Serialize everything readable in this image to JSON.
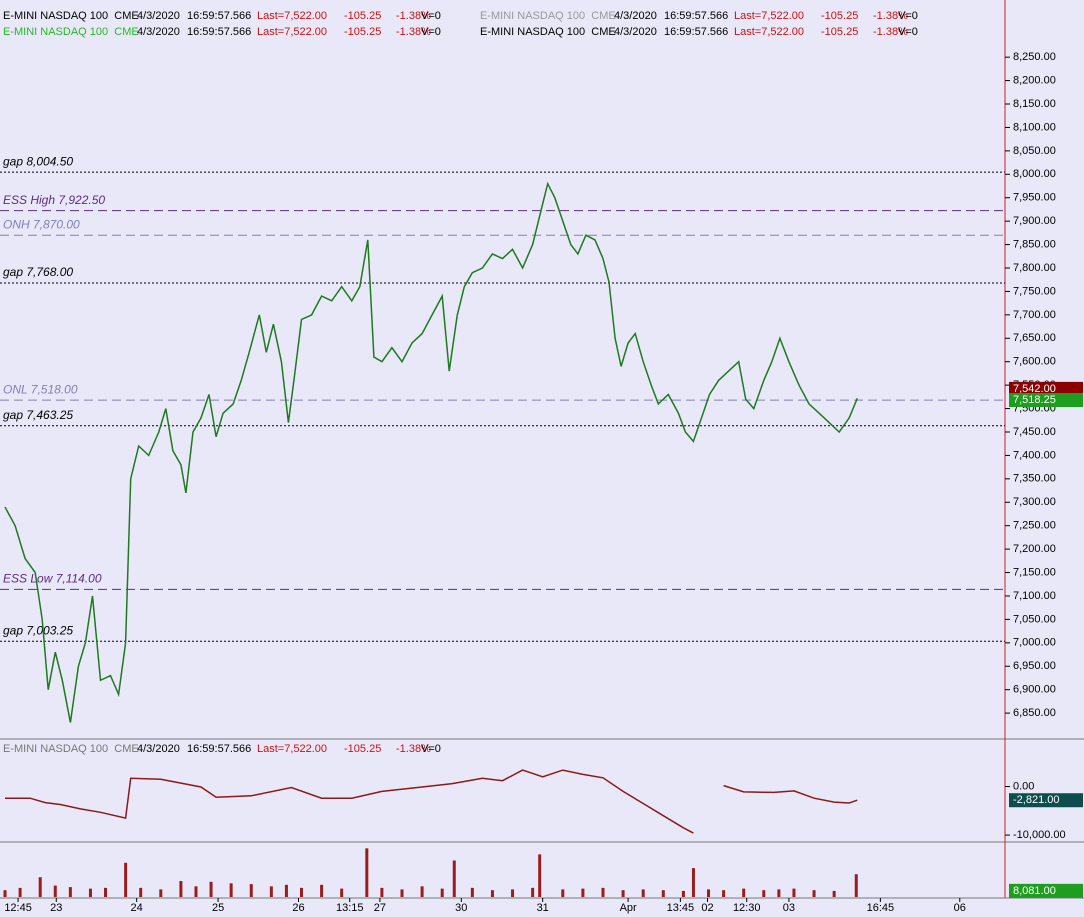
{
  "chart_data": [
    {
      "type": "line",
      "panel": "price",
      "color": "#1f7a1f",
      "headers": [
        {
          "name": "E-MINI NASDAQ 100  CME",
          "date": "4/3/2020",
          "time": "16:59:57.566",
          "last": "Last=7,522.00",
          "change": "-105.25",
          "pct": "-1.38%",
          "vol": "V=0",
          "color": "#000000"
        },
        {
          "name": "E-MINI NASDAQ 100  CME",
          "date": "4/3/2020",
          "time": "16:59:57.566",
          "last": "Last=7,522.00",
          "change": "-105.25",
          "pct": "-1.38%",
          "vol": "V=0",
          "color": "#22bb22"
        },
        {
          "name": "E-MINI NASDAQ 100  CME",
          "date": "4/3/2020",
          "time": "16:59:57.566",
          "last": "Last=7,522.00",
          "change": "-105.25",
          "pct": "-1.38%",
          "vol": "V=0",
          "color": "#999999"
        },
        {
          "name": "E-MINI NASDAQ 100  CME",
          "date": "4/3/2020",
          "time": "16:59:57.566",
          "last": "Last=7,522.00",
          "change": "-105.25",
          "pct": "-1.38%",
          "vol": "V=0",
          "color": "#000000"
        }
      ],
      "x": [
        0.5,
        1.5,
        2.5,
        3.5,
        4.2,
        4.8,
        5.5,
        6.2,
        7,
        7.8,
        8.5,
        9.2,
        10,
        11,
        11.8,
        12.5,
        13,
        13.8,
        14.8,
        15.8,
        16.5,
        17.2,
        18,
        18.5,
        19.2,
        20,
        20.8,
        21.5,
        22.2,
        23.2,
        24,
        24.8,
        25.8,
        26.5,
        27.2,
        28,
        28.7,
        29.3,
        30,
        31,
        32,
        33,
        34,
        35,
        35.8,
        36.6,
        37.2,
        38,
        39,
        40,
        41,
        42,
        43,
        44,
        44.7,
        45.5,
        46.2,
        47,
        48,
        49,
        50,
        51,
        52,
        53,
        53.8,
        54.5,
        55.2,
        56,
        56.8,
        57.5,
        58.3,
        59.2,
        60,
        60.6,
        61.2,
        61.8,
        62.5,
        63.2,
        64,
        64.8,
        65.5,
        66.5,
        67.5,
        68.2,
        69,
        69.8,
        70.6,
        71.5,
        72.5,
        73.5,
        74.2,
        75,
        76,
        76.8,
        77.6,
        78.5,
        79.5,
        80.5,
        81.5,
        82.5,
        83.5,
        84.5,
        85.3
      ],
      "values": [
        7290,
        7250,
        7180,
        7150,
        7050,
        6900,
        6980,
        6920,
        6830,
        6950,
        7000,
        7100,
        6920,
        6930,
        6890,
        7000,
        7350,
        7420,
        7400,
        7450,
        7500,
        7410,
        7380,
        7320,
        7450,
        7480,
        7530,
        7440,
        7490,
        7510,
        7560,
        7620,
        7700,
        7620,
        7680,
        7600,
        7470,
        7570,
        7690,
        7700,
        7740,
        7730,
        7760,
        7730,
        7760,
        7860,
        7610,
        7600,
        7630,
        7600,
        7640,
        7660,
        7700,
        7740,
        7580,
        7700,
        7760,
        7790,
        7800,
        7830,
        7820,
        7840,
        7800,
        7850,
        7920,
        7980,
        7950,
        7900,
        7850,
        7830,
        7870,
        7860,
        7820,
        7770,
        7650,
        7590,
        7640,
        7660,
        7600,
        7550,
        7510,
        7530,
        7490,
        7450,
        7430,
        7480,
        7530,
        7560,
        7580,
        7600,
        7520,
        7500,
        7560,
        7600,
        7650,
        7600,
        7550,
        7510,
        7490,
        7470,
        7450,
        7480,
        7522
      ],
      "xlim": [
        0,
        100
      ],
      "ylim": [
        6799,
        8372
      ],
      "yticks": [
        {
          "value": 6850,
          "label": "6,850.00"
        },
        {
          "value": 6900,
          "label": "6,900.00"
        },
        {
          "value": 6950,
          "label": "6,950.00"
        },
        {
          "value": 7000,
          "label": "7,000.00"
        },
        {
          "value": 7050,
          "label": "7,050.00"
        },
        {
          "value": 7100,
          "label": "7,100.00"
        },
        {
          "value": 7150,
          "label": "7,150.00"
        },
        {
          "value": 7200,
          "label": "7,200.00"
        },
        {
          "value": 7250,
          "label": "7,250.00"
        },
        {
          "value": 7300,
          "label": "7,300.00"
        },
        {
          "value": 7350,
          "label": "7,350.00"
        },
        {
          "value": 7400,
          "label": "7,400.00"
        },
        {
          "value": 7450,
          "label": "7,450.00"
        },
        {
          "value": 7500,
          "label": "7,500.00"
        },
        {
          "value": 7550,
          "label": "7,550.00"
        },
        {
          "value": 7600,
          "label": "7,600.00"
        },
        {
          "value": 7650,
          "label": "7,650.00"
        },
        {
          "value": 7700,
          "label": "7,700.00"
        },
        {
          "value": 7750,
          "label": "7,750.00"
        },
        {
          "value": 7800,
          "label": "7,800.00"
        },
        {
          "value": 7850,
          "label": "7,850.00"
        },
        {
          "value": 7900,
          "label": "7,900.00"
        },
        {
          "value": 7950,
          "label": "7,950.00"
        },
        {
          "value": 8000,
          "label": "8,000.00"
        },
        {
          "value": 8050,
          "label": "8,050.00"
        },
        {
          "value": 8100,
          "label": "8,100.00"
        },
        {
          "value": 8150,
          "label": "8,150.00"
        },
        {
          "value": 8200,
          "label": "8,200.00"
        },
        {
          "value": 8250,
          "label": "8,250.00"
        }
      ],
      "levels": [
        {
          "label": "gap 8,004.50",
          "value": 8004.5,
          "style": "dotted",
          "color": "#000000"
        },
        {
          "label": "ESS High 7,922.50",
          "value": 7922.5,
          "style": "dashed",
          "color": "#5b2c83"
        },
        {
          "label": "ONH 7,870.00",
          "value": 7870,
          "style": "dashed",
          "color": "#8080b8"
        },
        {
          "label": "gap 7,768.00",
          "value": 7768,
          "style": "dotted",
          "color": "#000000"
        },
        {
          "label": "ONL 7,518.00",
          "value": 7518,
          "style": "dashed",
          "color": "#8080b8"
        },
        {
          "label": "gap 7,463.25",
          "value": 7463.25,
          "style": "dotted",
          "color": "#000000"
        },
        {
          "label": "ESS Low 7,114.00",
          "value": 7114,
          "style": "dashed",
          "color": "#5b2c83"
        },
        {
          "label": "gap 7,003.25",
          "value": 7003.25,
          "style": "dotted",
          "color": "#000000"
        }
      ],
      "markers": [
        {
          "label": "7,542.00",
          "value": 7542,
          "color": "#8b0000"
        },
        {
          "label": "7,518.25",
          "value": 7518.25,
          "color": "#1e9e1e"
        }
      ]
    },
    {
      "type": "line",
      "panel": "indicator",
      "color": "#8b1a1a",
      "headers": [
        {
          "name": "E-MINI NASDAQ 100  CME",
          "date": "4/3/2020",
          "time": "16:59:57.566",
          "last": "Last=7,522.00",
          "change": "-105.25",
          "pct": "-1.38%",
          "vol": "V=0",
          "color": "#777777"
        }
      ],
      "x": [
        0.5,
        3,
        4.5,
        6,
        8,
        10,
        12.5,
        13,
        16,
        20,
        21.5,
        25,
        29,
        32,
        35,
        38,
        42,
        45,
        48,
        50,
        52,
        54,
        56,
        58,
        60,
        62,
        64,
        66,
        68,
        69,
        69.5,
        72,
        74,
        77,
        79,
        81,
        83,
        84.5,
        85.3
      ],
      "values": [
        -2400,
        -2400,
        -3300,
        -3700,
        -4600,
        -5300,
        -6500,
        1700,
        1500,
        -100,
        -2200,
        -1900,
        -200,
        -2400,
        -2400,
        -1000,
        -100,
        600,
        1700,
        1200,
        3400,
        2000,
        3400,
        2500,
        1800,
        -1000,
        -3500,
        -6000,
        -8500,
        -9600,
        null,
        200,
        -1100,
        -1200,
        -900,
        -2400,
        -3200,
        -3400,
        -2821
      ],
      "xlim": [
        0,
        100
      ],
      "ylim": [
        -11224,
        9388
      ],
      "yticks": [
        {
          "value": 0,
          "label": "0.00"
        },
        {
          "value": -10000,
          "label": "-10,000.00"
        }
      ],
      "markers": [
        {
          "label": "-2,821.00",
          "value": -2821,
          "color": "#0d4d4d"
        }
      ]
    },
    {
      "type": "bar",
      "panel": "volume",
      "color": "#9b1c1c",
      "x": [
        0.5,
        2,
        4,
        5.5,
        7,
        9,
        10.5,
        12.5,
        14,
        16,
        18,
        19.5,
        21,
        23,
        25,
        27,
        28.5,
        30,
        32,
        34,
        36.5,
        38,
        40,
        42,
        44,
        45.2,
        47,
        49,
        51,
        53,
        53.7,
        56,
        58,
        60,
        62,
        64,
        66,
        68,
        69,
        70.5,
        72,
        74,
        76,
        77.5,
        79,
        81,
        83,
        85.2
      ],
      "values": [
        9000,
        12000,
        26000,
        15000,
        13000,
        11000,
        12000,
        45000,
        12000,
        10000,
        21000,
        14000,
        20000,
        18000,
        17000,
        14000,
        16000,
        12000,
        16000,
        11000,
        64000,
        12000,
        10000,
        14000,
        11000,
        48000,
        12000,
        9000,
        10000,
        12000,
        56000,
        10000,
        11000,
        12000,
        9000,
        10000,
        9000,
        8000,
        38000,
        10000,
        9000,
        11000,
        9000,
        10000,
        11000,
        9000,
        8000,
        30000
      ],
      "xlim": [
        0,
        100
      ],
      "ylim": [
        0,
        71000
      ],
      "xticks": [
        {
          "value": 1.8,
          "label": "12:45"
        },
        {
          "value": 5.6,
          "label": "23"
        },
        {
          "value": 13.6,
          "label": "24"
        },
        {
          "value": 21.7,
          "label": "25"
        },
        {
          "value": 29.7,
          "label": "26"
        },
        {
          "value": 34.8,
          "label": "13:15"
        },
        {
          "value": 37.8,
          "label": "27"
        },
        {
          "value": 45.9,
          "label": "30"
        },
        {
          "value": 54,
          "label": "31"
        },
        {
          "value": 62.5,
          "label": "Apr"
        },
        {
          "value": 67.7,
          "label": "13:45"
        },
        {
          "value": 70.4,
          "label": "02"
        },
        {
          "value": 74.3,
          "label": "12:30"
        },
        {
          "value": 78.5,
          "label": "03"
        },
        {
          "value": 87.6,
          "label": "16:45"
        },
        {
          "value": 95.5,
          "label": "06"
        }
      ],
      "markers": [
        {
          "label": "8,081.00",
          "value": 8081,
          "color": "#1e9e1e"
        }
      ]
    }
  ]
}
